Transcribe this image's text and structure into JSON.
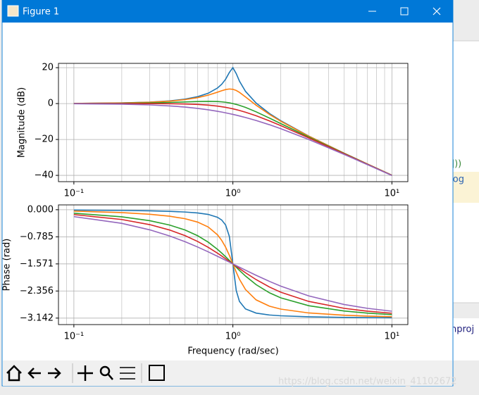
{
  "window": {
    "title": "Figure 1"
  },
  "background": {
    "code_fragments": [
      "]))",
      ".log",
      "nproj"
    ],
    "watermark": "https://blog.csdn.net/weixin_41102672"
  },
  "chart_data": [
    {
      "type": "line",
      "ylabel": "Magnitude (dB)",
      "xscale": "log",
      "grid": true,
      "x": [
        0.1,
        0.2,
        0.3,
        0.4,
        0.5,
        0.6,
        0.7,
        0.8,
        0.85,
        0.9,
        0.95,
        1.0,
        1.05,
        1.1,
        1.2,
        1.4,
        1.7,
        2,
        3,
        5,
        7,
        10
      ],
      "series": [
        {
          "color": "#1f77b4",
          "values": [
            0.087,
            0.353,
            0.814,
            1.505,
            2.48,
            3.838,
            5.768,
            8.665,
            10.745,
            13.546,
            17.321,
            20,
            16.669,
            12.503,
            6.819,
            0.263,
            -5.565,
            -9.562,
            -18.068,
            -27.606,
            -33.626,
            -39.913
          ]
        },
        {
          "color": "#ff7f0e",
          "values": [
            0.08,
            0.325,
            0.744,
            1.36,
            2.2,
            3.305,
            4.704,
            6.345,
            7.153,
            7.807,
            8.127,
            7.959,
            7.284,
            6.24,
            3.726,
            -0.917,
            -6.058,
            -9.841,
            -18.158,
            -27.634,
            -33.64,
            -39.92
          ]
        },
        {
          "color": "#2ca02c",
          "values": [
            0.043,
            0.17,
            0.371,
            0.627,
            0.902,
            1.138,
            1.249,
            1.138,
            0.972,
            0.726,
            0.4,
            0,
            -0.465,
            -0.984,
            -2.131,
            -4.596,
            -8.104,
            -11.139,
            -18.633,
            -27.789,
            -33.716,
            -39.957
          ]
        },
        {
          "color": "#d62728",
          "values": [
            0.001,
            0,
            -0.019,
            -0.083,
            -0.222,
            -0.474,
            -0.866,
            -1.411,
            -1.741,
            -2.105,
            -2.5,
            -2.923,
            -3.367,
            -3.83,
            -4.794,
            -6.779,
            -9.655,
            -12.263,
            -19.119,
            -27.959,
            -33.802,
            -39.999
          ]
        },
        {
          "color": "#9467bd",
          "values": [
            -0.086,
            -0.341,
            -0.749,
            -1.289,
            -1.938,
            -2.671,
            -3.463,
            -4.297,
            -4.723,
            -5.154,
            -5.587,
            -6.021,
            -6.455,
            -6.888,
            -7.748,
            -9.426,
            -11.799,
            -13.979,
            -20,
            -28.299,
            -33.979,
            -40.087
          ]
        }
      ],
      "xlim": [
        0.08,
        12.6
      ],
      "ylim": [
        -43.5,
        22.4
      ],
      "xticks": [
        {
          "value": 0.1,
          "label": "10⁻¹"
        },
        {
          "value": 1,
          "label": "10⁰"
        },
        {
          "value": 10,
          "label": "10¹"
        }
      ],
      "xminorticks": [
        0.09,
        0.2,
        0.3,
        0.4,
        0.5,
        0.6,
        0.7,
        0.8,
        0.9,
        2,
        3,
        4,
        5,
        6,
        7,
        8,
        9
      ],
      "yticks": [
        20,
        0,
        {
          "value": -20,
          "label": "−20"
        },
        {
          "value": -40,
          "label": "−40"
        }
      ]
    },
    {
      "type": "line",
      "ylabel": "Phase (rad)",
      "xlabel": "Frequency (rad/sec)",
      "xscale": "log",
      "grid": true,
      "x": [
        0.1,
        0.2,
        0.3,
        0.4,
        0.5,
        0.6,
        0.7,
        0.8,
        0.85,
        0.9,
        0.95,
        1.0,
        1.05,
        1.1,
        1.2,
        1.4,
        1.7,
        2,
        3,
        5,
        7,
        10
      ],
      "series": [
        {
          "color": "#1f77b4",
          "values": [
            -0.0101,
            -0.0208,
            -0.033,
            -0.0476,
            -0.0666,
            -0.0935,
            -0.1364,
            -0.2187,
            -0.2973,
            -0.4421,
            -0.7725,
            -1.5708,
            -2.3441,
            -2.6591,
            -2.8754,
            -2.9968,
            -3.0519,
            -3.075,
            -3.1041,
            -3.1208,
            -3.127,
            -3.1315
          ]
        },
        {
          "color": "#ff7f0e",
          "values": [
            -0.0404,
            -0.0831,
            -0.1311,
            -0.1882,
            -0.2606,
            -0.3588,
            -0.5019,
            -0.7266,
            -0.8867,
            -1.0852,
            -1.3197,
            -1.5708,
            -1.8101,
            -2.0163,
            -2.3128,
            -2.6135,
            -2.7962,
            -2.881,
            -2.9927,
            -3.0585,
            -3.0833,
            -3.1012
          ]
        },
        {
          "color": "#2ca02c",
          "values": [
            -0.1007,
            -0.2054,
            -0.3183,
            -0.4444,
            -0.588,
            -0.7532,
            -0.941,
            -1.1479,
            -1.2553,
            -1.3628,
            -1.4685,
            -1.5708,
            -1.6681,
            -1.7594,
            -1.9222,
            -2.1721,
            -2.4092,
            -2.5536,
            -2.7828,
            -2.9362,
            -2.9968,
            -3.0409
          ]
        },
        {
          "color": "#d62728",
          "values": [
            -0.1405,
            -0.2838,
            -0.4324,
            -0.588,
            -0.7508,
            -0.9197,
            -1.0913,
            -1.2597,
            -1.3417,
            -1.4212,
            -1.4976,
            -1.5708,
            -1.6404,
            -1.7063,
            -1.8268,
            -2.0261,
            -2.2418,
            -2.3908,
            -2.6582,
            -2.8578,
            -2.9402,
            -3.0011
          ]
        },
        {
          "color": "#9467bd",
          "values": [
            -0.1993,
            -0.3948,
            -0.5829,
            -0.761,
            -0.9273,
            -1.0808,
            -1.2209,
            -1.3495,
            -1.4089,
            -1.4656,
            -1.5195,
            -1.5708,
            -1.6196,
            -1.666,
            -1.7521,
            -1.9011,
            -2.0783,
            -2.2143,
            -2.4981,
            -2.7468,
            -2.8578,
            -2.9423
          ]
        }
      ],
      "xlim": [
        0.08,
        12.6
      ],
      "ylim": [
        -3.33,
        0.14
      ],
      "xticks": [
        {
          "value": 0.1,
          "label": "10⁻¹"
        },
        {
          "value": 1,
          "label": "10⁰"
        },
        {
          "value": 10,
          "label": "10¹"
        }
      ],
      "xminorticks": [
        0.09,
        0.2,
        0.3,
        0.4,
        0.5,
        0.6,
        0.7,
        0.8,
        0.9,
        2,
        3,
        4,
        5,
        6,
        7,
        8,
        9
      ],
      "yticks": [
        {
          "value": 0,
          "label": "0.000"
        },
        {
          "value": -0.785,
          "label": "−0.785"
        },
        {
          "value": -1.571,
          "label": "−1.571"
        },
        {
          "value": -2.356,
          "label": "−2.356"
        },
        {
          "value": -3.142,
          "label": "−3.142"
        }
      ]
    }
  ]
}
